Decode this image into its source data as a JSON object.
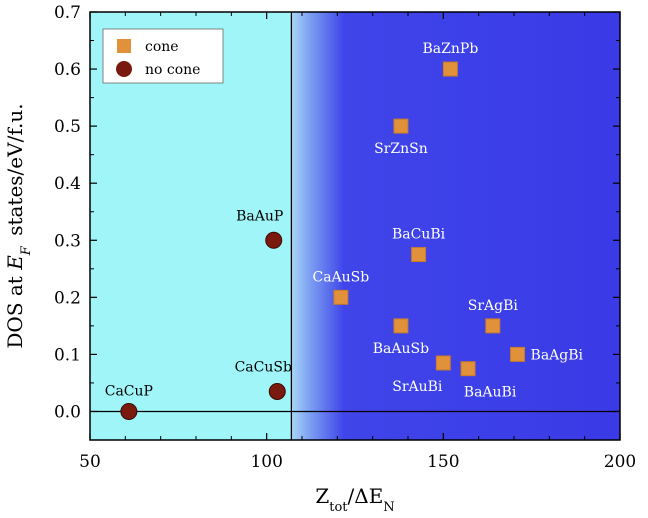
{
  "chart_data": {
    "type": "scatter",
    "xlabel": "Z_tot/ΔE_N",
    "ylabel": "DOS at E_F states/eV/f.u.",
    "xlim": [
      50,
      200
    ],
    "ylim": [
      -0.05,
      0.7
    ],
    "xticks": [
      50,
      100,
      150,
      200
    ],
    "yticks": [
      0.0,
      0.1,
      0.2,
      0.3,
      0.4,
      0.5,
      0.6,
      0.7
    ],
    "ytick_labels": [
      "0.0",
      "0.1",
      "0.2",
      "0.3",
      "0.4",
      "0.5",
      "0.6",
      "0.7"
    ],
    "vline_x": 107,
    "hline_y": 0,
    "legend_position": "top-left",
    "legend": [
      {
        "label": "cone",
        "marker": "square",
        "color": "#e0913a"
      },
      {
        "label": "no cone",
        "marker": "circle",
        "color": "#7a1a0e"
      }
    ],
    "colors": {
      "left_bg": "#9ff5f7",
      "right_bg": "#3b3be8",
      "cone": "#e0913a",
      "no_cone": "#7a1a0e"
    },
    "series": [
      {
        "name": "cone",
        "marker": "square",
        "points": [
          {
            "label": "BaZnPb",
            "x": 152,
            "y": 0.6,
            "label_pos": "above"
          },
          {
            "label": "SrZnSn",
            "x": 138,
            "y": 0.5,
            "label_pos": "below"
          },
          {
            "label": "BaCuBi",
            "x": 143,
            "y": 0.275,
            "label_pos": "above"
          },
          {
            "label": "CaAuSb",
            "x": 121,
            "y": 0.2,
            "label_pos": "above"
          },
          {
            "label": "SrAgBi",
            "x": 164,
            "y": 0.15,
            "label_pos": "above"
          },
          {
            "label": "BaAuSb",
            "x": 138,
            "y": 0.15,
            "label_pos": "below"
          },
          {
            "label": "BaAgBi",
            "x": 171,
            "y": 0.1,
            "label_pos": "right"
          },
          {
            "label": "SrAuBi",
            "x": 150,
            "y": 0.085,
            "label_pos": "below-left"
          },
          {
            "label": "BaAuBi",
            "x": 157,
            "y": 0.075,
            "label_pos": "below-right"
          }
        ]
      },
      {
        "name": "no cone",
        "marker": "circle",
        "points": [
          {
            "label": "BaAuP",
            "x": 102,
            "y": 0.3,
            "label_pos": "above-left"
          },
          {
            "label": "CaCuSb",
            "x": 103,
            "y": 0.035,
            "label_pos": "above-left"
          },
          {
            "label": "CaCuP",
            "x": 61,
            "y": 0.0,
            "label_pos": "above"
          }
        ]
      }
    ]
  }
}
